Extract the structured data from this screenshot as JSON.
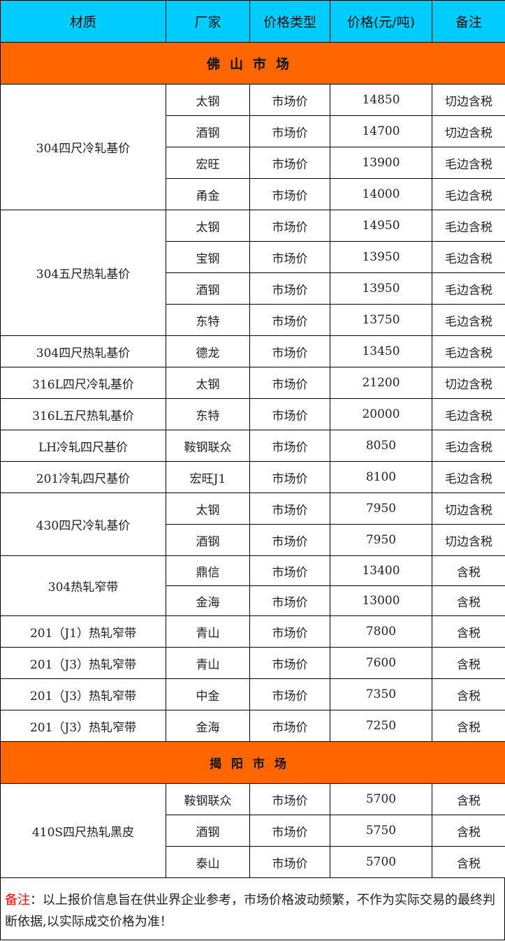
{
  "header": [
    "材质",
    "厂家",
    "价格类型",
    "价格(元/吨)",
    "备注"
  ],
  "colors": {
    "header_bg": "#00ccff",
    "section_bg": "#ff6600",
    "note_label": "#ff0000"
  },
  "sections": [
    {
      "title": "佛山市场",
      "groups": [
        {
          "material": "304四尺冷轧基价",
          "rows": [
            [
              "太钢",
              "市场价",
              "14850",
              "切边含税"
            ],
            [
              "酒钢",
              "市场价",
              "14700",
              "切边含税"
            ],
            [
              "宏旺",
              "市场价",
              "13900",
              "毛边含税"
            ],
            [
              "甬金",
              "市场价",
              "14000",
              "毛边含税"
            ]
          ]
        },
        {
          "material": "304五尺热轧基价",
          "rows": [
            [
              "太钢",
              "市场价",
              "14950",
              "毛边含税"
            ],
            [
              "宝钢",
              "市场价",
              "13950",
              "毛边含税"
            ],
            [
              "酒钢",
              "市场价",
              "13950",
              "毛边含税"
            ],
            [
              "东特",
              "市场价",
              "13750",
              "毛边含税"
            ]
          ]
        },
        {
          "material": "304四尺热轧基价",
          "rows": [
            [
              "德龙",
              "市场价",
              "13450",
              "毛边含税"
            ]
          ]
        },
        {
          "material": "316L四尺冷轧基价",
          "rows": [
            [
              "太钢",
              "市场价",
              "21200",
              "切边含税"
            ]
          ]
        },
        {
          "material": "316L五尺热轧基价",
          "rows": [
            [
              "东特",
              "市场价",
              "20000",
              "毛边含税"
            ]
          ]
        },
        {
          "material": "LH冷轧四尺基价",
          "rows": [
            [
              "鞍钢联众",
              "市场价",
              "8050",
              "毛边含税"
            ]
          ]
        },
        {
          "material": "201冷轧四尺基价",
          "rows": [
            [
              "宏旺J1",
              "市场价",
              "8100",
              "毛边含税"
            ]
          ]
        },
        {
          "material": "430四尺冷轧基价",
          "rows": [
            [
              "太钢",
              "市场价",
              "7950",
              "切边含税"
            ],
            [
              "酒钢",
              "市场价",
              "7950",
              "切边含税"
            ]
          ]
        },
        {
          "material": "304热轧窄带",
          "short": true,
          "rows": [
            [
              "鼎信",
              "市场价",
              "13400",
              "含税"
            ],
            [
              "金海",
              "市场价",
              "13000",
              "含税"
            ]
          ]
        },
        {
          "material": "201（J1）热轧窄带",
          "rows": [
            [
              "青山",
              "市场价",
              "7800",
              "含税"
            ]
          ]
        },
        {
          "material": "201（J3）热轧窄带",
          "rows": [
            [
              "青山",
              "市场价",
              "7600",
              "含税"
            ]
          ]
        },
        {
          "material": "201（J3）热轧窄带",
          "rows": [
            [
              "中金",
              "市场价",
              "7350",
              "含税"
            ]
          ]
        },
        {
          "material": "201（J3）热轧窄带",
          "rows": [
            [
              "金海",
              "市场价",
              "7250",
              "含税"
            ]
          ]
        }
      ]
    },
    {
      "title": "揭阳市场",
      "small": true,
      "groups": [
        {
          "material": "410S四尺热轧黑皮",
          "rows": [
            [
              "鞍钢联众",
              "市场价",
              "5700",
              "含税"
            ],
            [
              "酒钢",
              "市场价",
              "5750",
              "含税"
            ],
            [
              "泰山",
              "市场价",
              "5700",
              "含税"
            ]
          ]
        }
      ]
    }
  ],
  "note": {
    "label": "备注",
    "text": "：以上报价信息旨在供业界企业参考，市场价格波动频繁，不作为实际交易的最终判断依据,以实际成交价格为准！"
  }
}
